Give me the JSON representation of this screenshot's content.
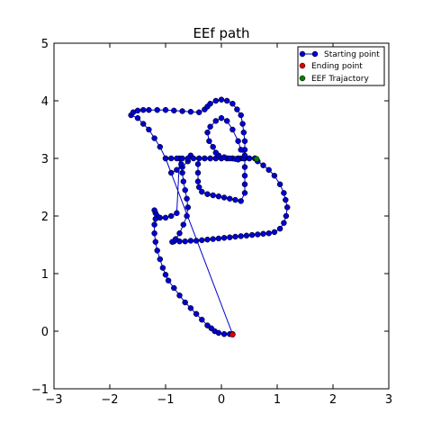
{
  "chart_data": {
    "type": "scatter",
    "title": "EEf path",
    "xlabel": "",
    "ylabel": "",
    "xlim": [
      -3,
      3
    ],
    "ylim": [
      -1,
      5
    ],
    "x_ticks": [
      "−3",
      "−2",
      "−1",
      "0",
      "1",
      "2",
      "3"
    ],
    "y_ticks": [
      "−1",
      "0",
      "1",
      "2",
      "3",
      "4",
      "5"
    ],
    "grid": false,
    "legend_position": "top-right",
    "legend": [
      {
        "label": "Starting point",
        "color": "#0000cc",
        "style": "line-marker"
      },
      {
        "label": "Ending point",
        "color": "#dd0000",
        "style": "marker"
      },
      {
        "label": "EEF Trajactory",
        "color": "#008000",
        "style": "marker"
      }
    ],
    "series": [
      {
        "name": "Starting point",
        "color": "#0000cc",
        "x": [
          -0.55,
          -0.6,
          -0.7,
          -0.8,
          -0.9,
          -1.0,
          -1.1,
          -1.2,
          -1.3,
          -1.4,
          -1.5,
          -1.62,
          -1.58,
          -1.5,
          -1.4,
          -1.3,
          -1.15,
          -1.0,
          -0.85,
          -0.7,
          -0.55,
          -0.4,
          -0.3,
          -0.25,
          -0.2,
          -0.1,
          0.0,
          0.1,
          0.2,
          0.28,
          0.35,
          0.38,
          0.4,
          0.42,
          0.42,
          0.42,
          0.42,
          0.42,
          0.42,
          0.42,
          0.35,
          0.25,
          0.15,
          0.05,
          -0.05,
          -0.15,
          -0.25,
          -0.35,
          -0.4,
          -0.42,
          -0.42,
          -0.42,
          -0.4,
          -0.3,
          -0.2,
          -0.1,
          0.0,
          0.1,
          0.2,
          0.3,
          0.35,
          0.4,
          0.5,
          0.6,
          0.65,
          0.75,
          0.85,
          0.95,
          1.05,
          1.12,
          1.15,
          1.18,
          1.16,
          1.12,
          1.05,
          0.95,
          0.85,
          0.75,
          0.65,
          0.55,
          0.45,
          0.35,
          0.25,
          0.15,
          0.05,
          -0.05,
          -0.15,
          -0.25,
          -0.35,
          -0.45,
          -0.55,
          -0.65,
          -0.75,
          -0.85,
          -0.88,
          -0.82,
          -0.75,
          -0.68,
          -0.62,
          -0.6,
          -0.62,
          -0.65,
          -0.68,
          -0.7,
          -0.72,
          -0.75,
          -0.8,
          -0.9,
          -1.0,
          -1.1,
          -1.15,
          -1.18,
          -1.2,
          -1.18,
          -1.2,
          -1.2,
          -1.18,
          -1.15,
          -1.1,
          -1.05,
          -1.0,
          -0.95,
          -0.85,
          -0.75,
          -0.65,
          -0.55,
          -0.45,
          -0.35,
          -0.25,
          -0.18,
          -0.12,
          -0.05,
          0.05,
          0.15,
          0.2,
          -1.0,
          -0.9,
          -0.8,
          -0.7,
          -0.6,
          -0.5,
          -0.4,
          -0.3,
          -0.2,
          -0.1,
          0.0,
          0.1,
          0.2,
          0.3,
          0.4,
          0.5,
          0.6,
          0.42,
          0.35,
          0.3,
          0.2,
          0.1,
          0.0,
          -0.1,
          -0.2,
          -0.25,
          -0.22,
          -0.15,
          -0.1,
          -0.05,
          0.05,
          0.15,
          0.25,
          0.3
        ],
        "y": [
          3.05,
          2.95,
          2.85,
          2.8,
          2.75,
          3.0,
          3.2,
          3.35,
          3.5,
          3.6,
          3.7,
          3.75,
          3.8,
          3.83,
          3.84,
          3.84,
          3.84,
          3.84,
          3.83,
          3.82,
          3.81,
          3.8,
          3.85,
          3.9,
          3.95,
          4.0,
          4.02,
          4.0,
          3.95,
          3.85,
          3.75,
          3.6,
          3.45,
          3.3,
          3.15,
          3.0,
          2.85,
          2.7,
          2.55,
          2.4,
          2.26,
          2.28,
          2.3,
          2.32,
          2.34,
          2.36,
          2.38,
          2.42,
          2.5,
          2.6,
          2.75,
          2.9,
          3.0,
          3.0,
          3.0,
          3.0,
          3.0,
          3.0,
          3.0,
          3.0,
          3.0,
          3.0,
          3.0,
          3.0,
          2.95,
          2.88,
          2.8,
          2.7,
          2.55,
          2.4,
          2.28,
          2.15,
          2.0,
          1.88,
          1.78,
          1.72,
          1.7,
          1.69,
          1.68,
          1.67,
          1.66,
          1.65,
          1.64,
          1.63,
          1.62,
          1.61,
          1.6,
          1.59,
          1.58,
          1.57,
          1.57,
          1.56,
          1.56,
          1.56,
          1.55,
          1.6,
          1.7,
          1.85,
          2.0,
          2.15,
          2.3,
          2.45,
          2.6,
          2.75,
          2.9,
          3.0,
          2.05,
          2.0,
          1.97,
          1.97,
          2.0,
          2.05,
          2.1,
          1.95,
          1.85,
          1.7,
          1.55,
          1.4,
          1.25,
          1.1,
          0.98,
          0.88,
          0.75,
          0.62,
          0.5,
          0.4,
          0.3,
          0.2,
          0.1,
          0.05,
          0.0,
          -0.03,
          -0.05,
          -0.05,
          -0.05,
          3.0,
          3.0,
          3.0,
          3.0,
          3.0,
          3.0,
          3.0,
          3.0,
          3.0,
          3.0,
          3.0,
          3.0,
          3.0,
          3.0,
          3.0,
          3.0,
          3.0,
          3.05,
          3.15,
          3.3,
          3.5,
          3.65,
          3.7,
          3.65,
          3.55,
          3.45,
          3.3,
          3.2,
          3.1,
          3.05,
          3.02,
          3.0,
          2.99,
          2.98
        ]
      },
      {
        "name": "Ending point",
        "color": "#dd0000",
        "x": [
          0.2
        ],
        "y": [
          -0.06
        ]
      },
      {
        "name": "EEF Trajactory",
        "color": "#008000",
        "x": [
          0.63
        ],
        "y": [
          2.99
        ]
      }
    ]
  }
}
